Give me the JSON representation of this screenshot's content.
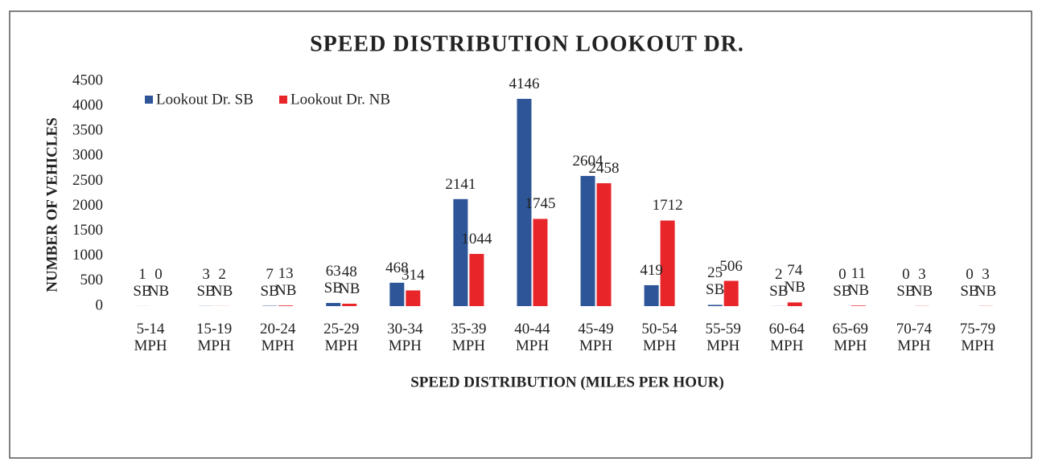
{
  "chart_data": {
    "type": "bar",
    "title": "SPEED DISTRIBUTION LOOKOUT DR.",
    "xlabel": "SPEED DISTRIBUTION (MILES PER HOUR)",
    "ylabel": "NUMBER OF VEHICLES",
    "categories": [
      "5-14 MPH",
      "15-19 MPH",
      "20-24 MPH",
      "25-29 MPH",
      "30-34 MPH",
      "35-39 MPH",
      "40-44 MPH",
      "45-49 MPH",
      "50-54 MPH",
      "55-59 MPH",
      "60-64 MPH",
      "65-69 MPH",
      "70-74 MPH",
      "75-79 MPH"
    ],
    "series": [
      {
        "name": "Lookout Dr. SB",
        "color": "#2e5597",
        "values": [
          1,
          3,
          7,
          63,
          468,
          2141,
          4146,
          2604,
          419,
          25,
          2,
          0,
          0,
          0
        ],
        "value_labels": [
          "1 SB",
          "3 SB",
          "7 SB",
          "63 SB",
          "468",
          "2141",
          "4146",
          "2604",
          "419",
          "25 SB",
          "2 SB",
          "0 SB",
          "0 SB",
          "0 SB"
        ]
      },
      {
        "name": "Lookout Dr. NB",
        "color": "#e8262a",
        "values": [
          0,
          2,
          13,
          48,
          314,
          1044,
          1745,
          2458,
          1712,
          506,
          74,
          11,
          3,
          3
        ],
        "value_labels": [
          "0 NB",
          "2 NB",
          "13 NB",
          "48 NB",
          "314",
          "1044",
          "1745",
          "2458",
          "1712",
          "506",
          "74 NB",
          "11 NB",
          "3 NB",
          "3 NB"
        ]
      }
    ],
    "ylim": [
      0,
      4500
    ],
    "yticks": [
      0,
      500,
      1000,
      1500,
      2000,
      2500,
      3000,
      3500,
      4000,
      4500
    ],
    "legend": "top-left"
  }
}
